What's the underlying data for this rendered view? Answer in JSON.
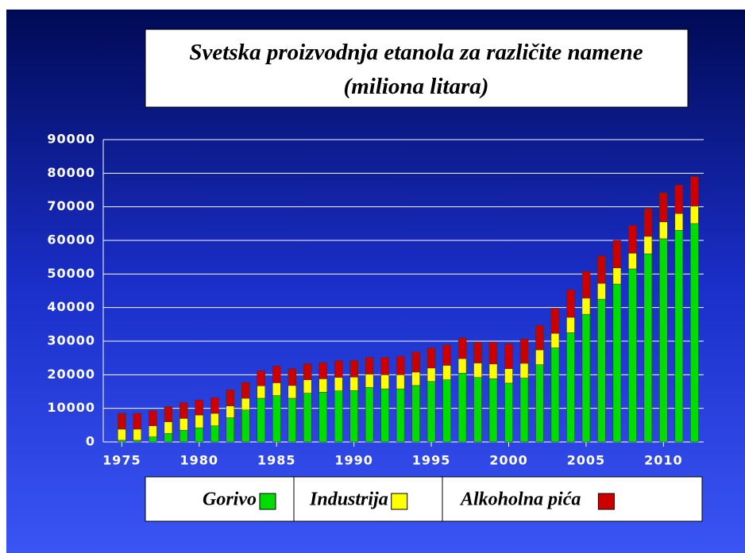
{
  "chart_data": {
    "type": "stacked_bar",
    "title": "Svetska proizvodnja etanola za različite namene",
    "subtitle": "(miliona litara)",
    "x": [
      1975,
      1976,
      1977,
      1978,
      1979,
      1980,
      1981,
      1982,
      1983,
      1984,
      1985,
      1986,
      1987,
      1988,
      1989,
      1990,
      1991,
      1992,
      1993,
      1994,
      1995,
      1996,
      1997,
      1998,
      1999,
      2000,
      2001,
      2002,
      2003,
      2004,
      2005,
      2006,
      2007,
      2008,
      2009,
      2010,
      2011,
      2012
    ],
    "series": [
      {
        "name": "Gorivo",
        "color": "#00dd00",
        "values": [
          500,
          500,
          1500,
          2500,
          3500,
          4200,
          4800,
          7200,
          9500,
          13000,
          13800,
          13000,
          14500,
          14800,
          15200,
          15300,
          16200,
          15800,
          15800,
          16800,
          18000,
          18500,
          20500,
          19200,
          18800,
          17500,
          19000,
          23000,
          28000,
          32500,
          38000,
          42500,
          47000,
          51500,
          56000,
          60500,
          63000,
          65000
        ]
      },
      {
        "name": "Industrija",
        "color": "#ffff00",
        "values": [
          3300,
          3300,
          3300,
          3500,
          3500,
          3800,
          3700,
          3500,
          3500,
          3700,
          3800,
          3800,
          4000,
          4000,
          4000,
          4000,
          4000,
          4200,
          4200,
          4000,
          4000,
          4300,
          4300,
          4300,
          4400,
          4300,
          4400,
          4400,
          4300,
          4600,
          4800,
          4700,
          4800,
          4700,
          5200,
          5000,
          5000,
          5200
        ]
      },
      {
        "name": "Alkoholna pića",
        "color": "#cc0000",
        "values": [
          4700,
          4700,
          4500,
          4500,
          4700,
          4500,
          4700,
          4800,
          4700,
          4500,
          5000,
          5000,
          4800,
          4800,
          5000,
          5000,
          5000,
          5200,
          5500,
          6000,
          6000,
          6100,
          6200,
          6200,
          6500,
          7400,
          7300,
          7300,
          7500,
          8200,
          8000,
          8200,
          8200,
          8300,
          8300,
          8700,
          8500,
          8800
        ]
      }
    ],
    "xlim": [
      1973.8,
      2012.6
    ],
    "xticks": [
      1975,
      1980,
      1985,
      1990,
      1995,
      2000,
      2005,
      2010
    ],
    "ylim": [
      0,
      90000
    ],
    "yticks": [
      0,
      10000,
      20000,
      30000,
      40000,
      50000,
      60000,
      70000,
      80000,
      90000
    ],
    "grid": true,
    "legend": "bottom"
  }
}
